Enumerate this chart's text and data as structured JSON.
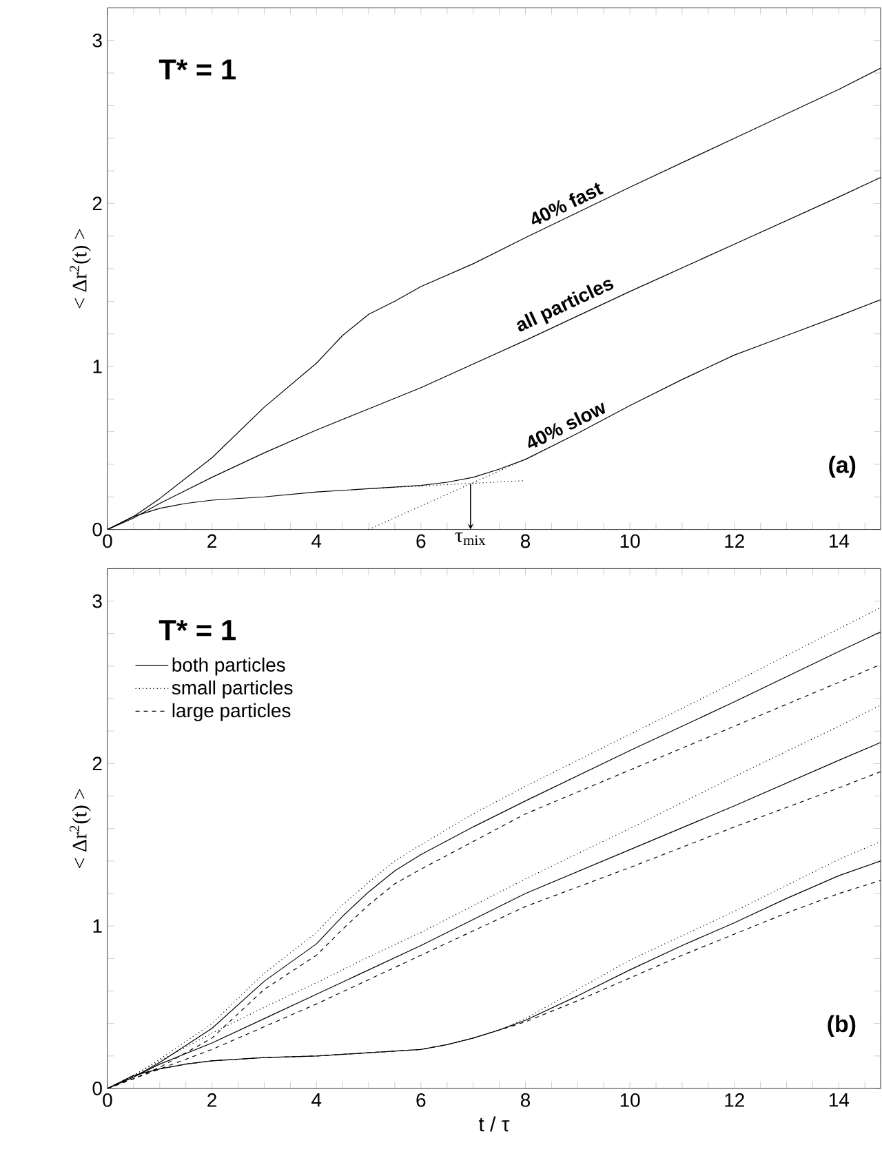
{
  "chart_data": [
    {
      "type": "line",
      "ylabel": "< Δr$^{2}$(t) >",
      "annotations": [
        "T* = 1",
        "(a)",
        {
          "text": "τ$_{mix}$",
          "x": 6.95,
          "y": 0.28
        }
      ],
      "xlim": [
        0,
        14.8
      ],
      "ylim": [
        0,
        3.2
      ],
      "xticks": [
        0,
        {
          "value": 0.5,
          "label": null
        },
        {
          "value": 1,
          "label": null
        },
        {
          "value": 1.5,
          "label": null
        },
        2,
        {
          "value": 2.5,
          "label": null
        },
        {
          "value": 3,
          "label": null
        },
        {
          "value": 3.5,
          "label": null
        },
        4,
        {
          "value": 4.5,
          "label": null
        },
        {
          "value": 5,
          "label": null
        },
        {
          "value": 5.5,
          "label": null
        },
        6,
        {
          "value": 6.5,
          "label": null
        },
        {
          "value": 7,
          "label": null
        },
        {
          "value": 7.5,
          "label": null
        },
        8,
        {
          "value": 8.5,
          "label": null
        },
        {
          "value": 9,
          "label": null
        },
        {
          "value": 9.5,
          "label": null
        },
        10,
        {
          "value": 10.5,
          "label": null
        },
        {
          "value": 11,
          "label": null
        },
        {
          "value": 11.5,
          "label": null
        },
        12,
        {
          "value": 12.5,
          "label": null
        },
        {
          "value": 13,
          "label": null
        },
        {
          "value": 13.5,
          "label": null
        },
        14,
        {
          "value": 14.5,
          "label": null
        }
      ],
      "yticks": [
        0,
        {
          "value": 0.2,
          "label": null
        },
        {
          "value": 0.4,
          "label": null
        },
        {
          "value": 0.6,
          "label": null
        },
        {
          "value": 0.8,
          "label": null
        },
        1,
        {
          "value": 1.2,
          "label": null
        },
        {
          "value": 1.4,
          "label": null
        },
        {
          "value": 1.6,
          "label": null
        },
        {
          "value": 1.8,
          "label": null
        },
        2,
        {
          "value": 2.2,
          "label": null
        },
        {
          "value": 2.4,
          "label": null
        },
        {
          "value": 2.6,
          "label": null
        },
        {
          "value": 2.8,
          "label": null
        },
        3
      ],
      "series": [
        {
          "name": "40% fast",
          "color": "#000000",
          "line_style": "solid",
          "x": [
            0,
            0.5,
            1,
            2,
            3,
            4,
            4.5,
            5,
            5.5,
            6,
            7,
            8,
            10,
            12,
            14,
            14.8
          ],
          "values": [
            0,
            0.08,
            0.19,
            0.44,
            0.75,
            1.02,
            1.19,
            1.32,
            1.4,
            1.49,
            1.63,
            1.79,
            2.1,
            2.4,
            2.7,
            2.83
          ]
        },
        {
          "name": "all particles",
          "color": "#000000",
          "line_style": "solid",
          "x": [
            0,
            0.5,
            1,
            2,
            3,
            4,
            5,
            6,
            8,
            10,
            12,
            14,
            14.8
          ],
          "values": [
            0,
            0.07,
            0.16,
            0.32,
            0.47,
            0.61,
            0.74,
            0.87,
            1.16,
            1.46,
            1.75,
            2.04,
            2.16
          ]
        },
        {
          "name": "40% slow",
          "color": "#000000",
          "line_style": "solid",
          "x": [
            0,
            0.5,
            1,
            1.5,
            2,
            3,
            4,
            5,
            6,
            6.5,
            7,
            7.5,
            8,
            9,
            10,
            11,
            12,
            13,
            14,
            14.8
          ],
          "values": [
            0,
            0.08,
            0.13,
            0.16,
            0.18,
            0.2,
            0.23,
            0.25,
            0.27,
            0.29,
            0.32,
            0.37,
            0.43,
            0.59,
            0.76,
            0.92,
            1.07,
            1.19,
            1.31,
            1.41
          ]
        },
        {
          "color": "#000000",
          "line_style": "dotted",
          "x": [
            5,
            8.2
          ],
          "values": [
            0,
            0.46
          ]
        },
        {
          "color": "#000000",
          "line_style": "dotted",
          "x": [
            5,
            8
          ],
          "values": [
            0.25,
            0.3
          ]
        }
      ]
    },
    {
      "type": "line",
      "xlabel": "t / τ",
      "ylabel": "< Δr$^{2}$(t) >",
      "legend": "top left",
      "annotations": [
        "T* = 1",
        "(b)"
      ],
      "xlim": [
        0,
        14.8
      ],
      "ylim": [
        0,
        3.2
      ],
      "xticks": [
        0,
        {
          "value": 0.5,
          "label": null
        },
        {
          "value": 1,
          "label": null
        },
        {
          "value": 1.5,
          "label": null
        },
        2,
        {
          "value": 2.5,
          "label": null
        },
        {
          "value": 3,
          "label": null
        },
        {
          "value": 3.5,
          "label": null
        },
        4,
        {
          "value": 4.5,
          "label": null
        },
        {
          "value": 5,
          "label": null
        },
        {
          "value": 5.5,
          "label": null
        },
        6,
        {
          "value": 6.5,
          "label": null
        },
        {
          "value": 7,
          "label": null
        },
        {
          "value": 7.5,
          "label": null
        },
        8,
        {
          "value": 8.5,
          "label": null
        },
        {
          "value": 9,
          "label": null
        },
        {
          "value": 9.5,
          "label": null
        },
        10,
        {
          "value": 10.5,
          "label": null
        },
        {
          "value": 11,
          "label": null
        },
        {
          "value": 11.5,
          "label": null
        },
        12,
        {
          "value": 12.5,
          "label": null
        },
        {
          "value": 13,
          "label": null
        },
        {
          "value": 13.5,
          "label": null
        },
        14,
        {
          "value": 14.5,
          "label": null
        }
      ],
      "yticks": [
        0,
        {
          "value": 0.2,
          "label": null
        },
        {
          "value": 0.4,
          "label": null
        },
        {
          "value": 0.6,
          "label": null
        },
        {
          "value": 0.8,
          "label": null
        },
        1,
        {
          "value": 1.2,
          "label": null
        },
        {
          "value": 1.4,
          "label": null
        },
        {
          "value": 1.6,
          "label": null
        },
        {
          "value": 1.8,
          "label": null
        },
        2,
        {
          "value": 2.2,
          "label": null
        },
        {
          "value": 2.4,
          "label": null
        },
        {
          "value": 2.6,
          "label": null
        },
        {
          "value": 2.8,
          "label": null
        },
        3
      ],
      "series": [
        {
          "name": "both particles",
          "color": "#000000",
          "line_style": "solid",
          "x": [
            0,
            0.5,
            1,
            2,
            3,
            4,
            4.5,
            5,
            5.5,
            6,
            7,
            8,
            10,
            12,
            14,
            14.8
          ],
          "values": [
            0,
            0.07,
            0.16,
            0.37,
            0.66,
            0.89,
            1.06,
            1.21,
            1.34,
            1.44,
            1.61,
            1.77,
            2.08,
            2.38,
            2.69,
            2.81
          ]
        },
        {
          "name": "small particles",
          "color": "#000000",
          "line_style": "dotted",
          "x": [
            0,
            0.5,
            1,
            2,
            3,
            4,
            4.5,
            5,
            5.5,
            6,
            7,
            8,
            10,
            12,
            14,
            14.8
          ],
          "values": [
            0,
            0.08,
            0.18,
            0.4,
            0.71,
            0.96,
            1.13,
            1.27,
            1.4,
            1.5,
            1.69,
            1.86,
            2.18,
            2.5,
            2.83,
            2.96
          ]
        },
        {
          "name": "large particles",
          "color": "#000000",
          "line_style": "dashed",
          "x": [
            0,
            0.5,
            1,
            2,
            3,
            4,
            4.5,
            5,
            5.5,
            6,
            7,
            8,
            10,
            12,
            14,
            14.8
          ],
          "values": [
            0,
            0.06,
            0.13,
            0.31,
            0.61,
            0.82,
            0.98,
            1.13,
            1.26,
            1.35,
            1.52,
            1.69,
            1.96,
            2.23,
            2.5,
            2.61
          ]
        },
        {
          "color": "#000000",
          "line_style": "solid",
          "x": [
            0,
            0.5,
            1,
            2,
            3,
            4,
            5,
            6,
            8,
            10,
            12,
            14,
            14.8
          ],
          "values": [
            0,
            0.07,
            0.15,
            0.28,
            0.43,
            0.58,
            0.73,
            0.88,
            1.2,
            1.47,
            1.74,
            2.02,
            2.13
          ]
        },
        {
          "color": "#000000",
          "line_style": "dotted",
          "x": [
            0,
            0.5,
            1,
            2,
            3,
            4,
            5,
            6,
            8,
            10,
            12,
            14,
            14.8
          ],
          "values": [
            0,
            0.08,
            0.17,
            0.34,
            0.5,
            0.65,
            0.81,
            0.96,
            1.29,
            1.6,
            1.92,
            2.23,
            2.36
          ]
        },
        {
          "color": "#000000",
          "line_style": "dashed",
          "x": [
            0,
            0.5,
            1,
            2,
            3,
            4,
            5,
            6,
            8,
            10,
            12,
            14,
            14.8
          ],
          "values": [
            0,
            0.06,
            0.12,
            0.24,
            0.38,
            0.52,
            0.67,
            0.82,
            1.12,
            1.36,
            1.61,
            1.85,
            1.95
          ]
        },
        {
          "color": "#000000",
          "line_style": "solid",
          "x": [
            0,
            0.5,
            1,
            1.5,
            2,
            3,
            4,
            5,
            6,
            6.5,
            7,
            7.5,
            8,
            9,
            10,
            11,
            12,
            13,
            14,
            14.8
          ],
          "values": [
            0,
            0.08,
            0.12,
            0.15,
            0.17,
            0.19,
            0.2,
            0.22,
            0.24,
            0.27,
            0.31,
            0.36,
            0.42,
            0.57,
            0.73,
            0.88,
            1.02,
            1.17,
            1.31,
            1.4
          ]
        },
        {
          "color": "#000000",
          "line_style": "dotted",
          "x": [
            0,
            0.5,
            1,
            1.5,
            2,
            3,
            4,
            5,
            6,
            6.5,
            7,
            7.5,
            8,
            9,
            10,
            11,
            12,
            13,
            14,
            14.8
          ],
          "values": [
            0,
            0.08,
            0.12,
            0.15,
            0.17,
            0.19,
            0.2,
            0.22,
            0.24,
            0.27,
            0.31,
            0.36,
            0.43,
            0.61,
            0.79,
            0.94,
            1.09,
            1.25,
            1.41,
            1.52
          ]
        },
        {
          "color": "#000000",
          "line_style": "dashed",
          "x": [
            0,
            0.5,
            1,
            1.5,
            2,
            3,
            4,
            5,
            6,
            6.5,
            7,
            7.5,
            8,
            9,
            10,
            11,
            12,
            13,
            14,
            14.8
          ],
          "values": [
            0,
            0.08,
            0.12,
            0.15,
            0.17,
            0.19,
            0.2,
            0.22,
            0.24,
            0.27,
            0.31,
            0.36,
            0.41,
            0.54,
            0.68,
            0.82,
            0.95,
            1.08,
            1.2,
            1.28
          ]
        }
      ]
    }
  ]
}
